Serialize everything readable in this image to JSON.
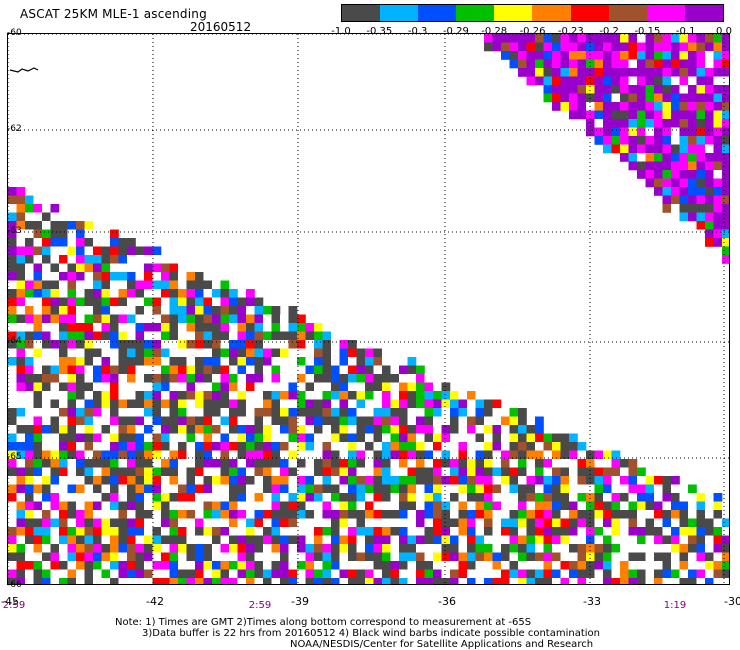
{
  "header": {
    "title": "ASCAT 25KM MLE-1 ascending",
    "date": "20160512"
  },
  "colorbar": {
    "colors": [
      "#4a4a4a",
      "#00b2ff",
      "#0050ff",
      "#00c000",
      "#ffff00",
      "#ff8000",
      "#ff0000",
      "#a0522d",
      "#ff00ff",
      "#9900cc"
    ],
    "labels": [
      "-1.0",
      "-0.35",
      "-0.3",
      "-0.29",
      "-0.28",
      "-0.26",
      "-0.23",
      "-0.2",
      "-0.15",
      "-0.1",
      "0.0"
    ]
  },
  "map": {
    "lat_labels": [
      "-60",
      "-62",
      "-63",
      "-64",
      "-65",
      "-66"
    ],
    "lon_labels": [
      "-45",
      "-42",
      "-39",
      "-36",
      "-33",
      "-30"
    ],
    "time_labels": [
      "2:59",
      "2:59",
      "1:19"
    ],
    "palette": [
      "#4a4a4a",
      "#00b2ff",
      "#0050ff",
      "#00c000",
      "#ffff00",
      "#ff8000",
      "#ff0000",
      "#a0522d",
      "#ff00ff",
      "#9900cc",
      "#ffffff"
    ]
  },
  "notes": {
    "line1": "Note: 1) Times are GMT 2)Times along bottom correspond to measurement at -65S",
    "line2": "3)Data buffer is 22 hrs from 20160512 4) Black wind barbs indicate possible contamination",
    "line3": "NOAA/NESDIS/Center for Satellite Applications and Research"
  }
}
